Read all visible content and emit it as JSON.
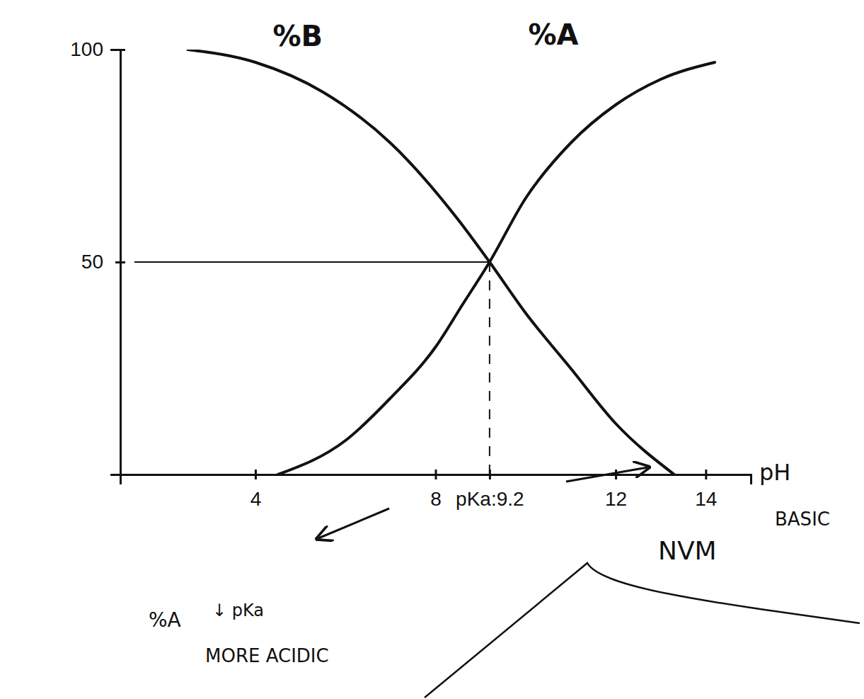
{
  "chart_data": {
    "type": "line",
    "x_label": "pH",
    "xlim": [
      1,
      15
    ],
    "xticks": [
      4,
      8,
      {
        "value": 9.2,
        "label": "pKa:9.2"
      },
      12,
      14
    ],
    "ylim": [
      0,
      100
    ],
    "yticks": [
      50,
      100
    ],
    "grid": false,
    "series": [
      {
        "name": "%B",
        "color": "#111111",
        "x": [
          2.5,
          4,
          5.5,
          7,
          8.5,
          9.2,
          10,
          11,
          12,
          13.3
        ],
        "values": [
          100,
          97,
          90,
          78,
          60,
          50,
          38,
          25,
          12,
          0
        ]
      },
      {
        "name": "%A",
        "color": "#111111",
        "x": [
          4.5,
          6,
          7,
          8,
          8.6,
          9.2,
          10,
          11,
          12,
          13,
          14.2
        ],
        "values": [
          0,
          8,
          18,
          30,
          40,
          50,
          65,
          78,
          87,
          93,
          97
        ]
      }
    ],
    "annotations": [
      {
        "text": "BASIC"
      },
      {
        "text": "%A"
      },
      {
        "text": "↓ pKa"
      },
      {
        "text": "MORE ACIDIC"
      },
      {
        "text": "NVM"
      }
    ]
  }
}
